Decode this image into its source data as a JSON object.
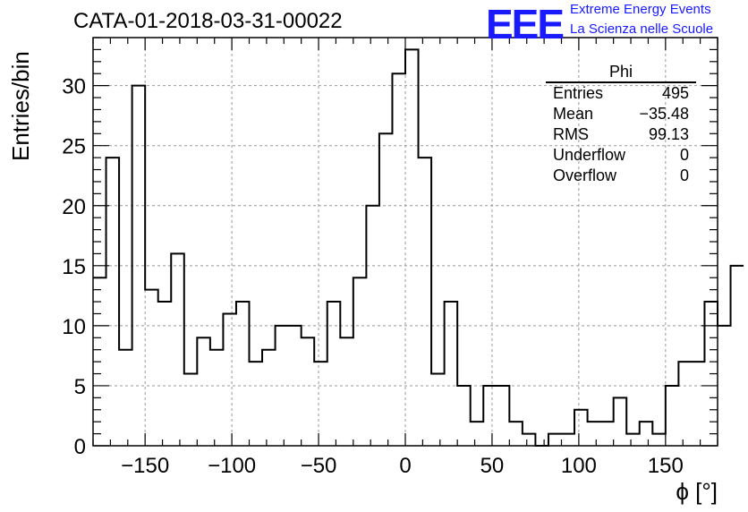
{
  "header": {
    "title": "CATA-01-2018-03-31-00022",
    "logo_text": "EEE",
    "logo_line1": "Extreme Energy Events",
    "logo_line2": "La Scienza nelle Scuole"
  },
  "stats": {
    "name": "Phi",
    "rows": [
      {
        "label": "Entries",
        "value": "495"
      },
      {
        "label": "Mean",
        "value": "−35.48"
      },
      {
        "label": "RMS",
        "value": "99.13"
      },
      {
        "label": "Underflow",
        "value": "0"
      },
      {
        "label": "Overflow",
        "value": "0"
      }
    ]
  },
  "chart_data": {
    "type": "bar",
    "histogram": true,
    "xlabel": "ϕ [°]",
    "ylabel": "Entries/bin",
    "xlim": [
      -180,
      180
    ],
    "ylim": [
      0,
      34
    ],
    "grid": true,
    "bin_width": 7.5,
    "x_ticks": [
      -150,
      -100,
      -50,
      0,
      50,
      100,
      150
    ],
    "x_tick_labels": [
      "−150",
      "−100",
      "−50",
      "0",
      "50",
      "100",
      "150"
    ],
    "y_ticks": [
      0,
      5,
      10,
      15,
      20,
      25,
      30
    ],
    "y_tick_labels": [
      "0",
      "5",
      "10",
      "15",
      "20",
      "25",
      "30"
    ],
    "bin_edges_start": -180,
    "values": [
      14,
      24,
      8,
      30,
      13,
      12,
      16,
      6,
      9,
      8,
      11,
      12,
      7,
      8,
      10,
      10,
      9,
      7,
      12,
      9,
      14,
      20,
      26,
      31,
      33,
      24,
      6,
      12,
      5,
      2,
      5,
      5,
      2,
      1,
      0,
      1,
      1,
      3,
      2,
      2,
      4,
      1,
      2,
      1,
      5,
      7,
      7,
      12,
      10,
      15
    ],
    "line_color": "#000000"
  }
}
